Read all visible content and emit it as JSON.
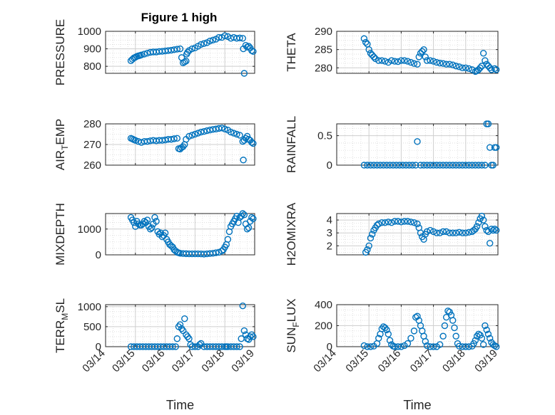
{
  "figure": {
    "title": "Figure 1 high"
  },
  "colors": {
    "marker": "#0072BD",
    "grid": "#d9d9d9",
    "axis": "#262626"
  },
  "chart_data": [
    {
      "type": "scatter",
      "ylabel": "PRESSURE",
      "xlabel": "",
      "xlim": [
        0,
        5
      ],
      "ylim": [
        760,
        1000
      ],
      "yticks": [
        800,
        900,
        1000
      ],
      "ytick_labels": [
        "800",
        "900",
        "1000"
      ],
      "xtick_labels": [],
      "grid": true,
      "x": [
        0.85,
        0.9,
        0.95,
        1.0,
        1.05,
        1.1,
        1.15,
        1.2,
        1.3,
        1.4,
        1.5,
        1.6,
        1.7,
        1.8,
        1.9,
        2.0,
        2.1,
        2.2,
        2.3,
        2.4,
        2.5,
        2.55,
        2.6,
        2.65,
        2.7,
        2.72,
        2.75,
        2.8,
        2.9,
        3.0,
        3.1,
        3.2,
        3.3,
        3.4,
        3.5,
        3.6,
        3.7,
        3.8,
        3.9,
        4.0,
        4.1,
        4.2,
        4.3,
        4.4,
        4.5,
        4.6,
        4.62,
        4.65,
        4.7,
        4.75,
        4.8,
        4.85,
        4.9,
        4.95
      ],
      "y": [
        832,
        840,
        848,
        852,
        857,
        860,
        862,
        865,
        870,
        875,
        880,
        882,
        882,
        885,
        886,
        888,
        890,
        892,
        895,
        898,
        900,
        850,
        820,
        825,
        830,
        870,
        880,
        890,
        900,
        905,
        915,
        925,
        930,
        935,
        945,
        950,
        955,
        965,
        965,
        975,
        970,
        960,
        965,
        960,
        962,
        960,
        900,
        760,
        920,
        910,
        915,
        905,
        890,
        885
      ]
    },
    {
      "type": "scatter",
      "ylabel": "THETA",
      "xlabel": "",
      "xlim": [
        0,
        5
      ],
      "ylim": [
        278.5,
        290
      ],
      "yticks": [
        280,
        285,
        290
      ],
      "ytick_labels": [
        "280",
        "285",
        "290"
      ],
      "xtick_labels": [],
      "grid": true,
      "x": [
        0.85,
        0.9,
        0.95,
        1.0,
        1.05,
        1.1,
        1.15,
        1.2,
        1.3,
        1.4,
        1.5,
        1.6,
        1.7,
        1.8,
        1.9,
        2.0,
        2.1,
        2.2,
        2.3,
        2.4,
        2.5,
        2.55,
        2.6,
        2.65,
        2.7,
        2.75,
        2.8,
        2.9,
        3.0,
        3.1,
        3.2,
        3.3,
        3.4,
        3.5,
        3.6,
        3.7,
        3.8,
        3.9,
        4.0,
        4.1,
        4.2,
        4.3,
        4.35,
        4.4,
        4.45,
        4.5,
        4.55,
        4.6,
        4.65,
        4.7,
        4.75,
        4.8,
        4.9,
        4.95
      ],
      "y": [
        288,
        287,
        286.5,
        285,
        284,
        283.5,
        283,
        282.5,
        282,
        282,
        281.8,
        281.5,
        282,
        281.8,
        281.7,
        282,
        282,
        281.8,
        281.5,
        281.2,
        281,
        283,
        284,
        284.5,
        285,
        283,
        282,
        282,
        281.8,
        281.5,
        281.3,
        281.2,
        281,
        281,
        280.8,
        280.5,
        280.3,
        280,
        280,
        279.8,
        279.5,
        279,
        279.2,
        279.5,
        280,
        280.5,
        284,
        282,
        281,
        280.5,
        280,
        279.5,
        279.8,
        279.5
      ]
    },
    {
      "type": "scatter",
      "ylabel": "AIR_T_EMP",
      "xlabel": "",
      "xlim": [
        0,
        5
      ],
      "ylim": [
        260,
        280
      ],
      "yticks": [
        260,
        270,
        280
      ],
      "ytick_labels": [
        "260",
        "270",
        "280"
      ],
      "xtick_labels": [],
      "grid": true,
      "x": [
        0.85,
        0.9,
        0.95,
        1.0,
        1.1,
        1.2,
        1.3,
        1.4,
        1.5,
        1.6,
        1.7,
        1.8,
        1.9,
        2.0,
        2.1,
        2.2,
        2.3,
        2.4,
        2.45,
        2.5,
        2.55,
        2.6,
        2.65,
        2.7,
        2.8,
        2.9,
        3.0,
        3.1,
        3.2,
        3.3,
        3.4,
        3.5,
        3.6,
        3.7,
        3.8,
        3.9,
        4.0,
        4.1,
        4.2,
        4.3,
        4.4,
        4.5,
        4.6,
        4.62,
        4.65,
        4.7,
        4.75,
        4.8,
        4.85,
        4.9,
        4.95
      ],
      "y": [
        273,
        272.7,
        272.3,
        272,
        271.5,
        271,
        271.5,
        271.5,
        271.8,
        272,
        271.8,
        272,
        272,
        272.2,
        272.5,
        272.5,
        272.8,
        273,
        268,
        267.8,
        268.5,
        269,
        270,
        272.5,
        274,
        274.5,
        275,
        275.5,
        276,
        276.3,
        276.7,
        277,
        277.3,
        277.5,
        277.8,
        278,
        277.5,
        277,
        276,
        275.5,
        275,
        274.5,
        271.5,
        262.5,
        272,
        273,
        274,
        272.5,
        272,
        271,
        270.5
      ]
    },
    {
      "type": "scatter",
      "ylabel": "RAINFALL",
      "xlabel": "",
      "xlim": [
        0,
        5
      ],
      "ylim": [
        0,
        0.7
      ],
      "yticks": [
        0,
        0.5
      ],
      "ytick_labels": [
        "0",
        "0.5"
      ],
      "xtick_labels": [],
      "grid": true,
      "x": [
        0.85,
        0.95,
        1.05,
        1.15,
        1.25,
        1.35,
        1.45,
        1.55,
        1.65,
        1.75,
        1.85,
        1.95,
        2.05,
        2.15,
        2.25,
        2.35,
        2.45,
        2.5,
        2.6,
        2.7,
        2.8,
        2.9,
        3.0,
        3.1,
        3.2,
        3.3,
        3.4,
        3.5,
        3.6,
        3.7,
        3.8,
        3.9,
        4.0,
        4.1,
        4.2,
        4.3,
        4.4,
        4.5,
        4.6,
        4.65,
        4.7,
        4.75,
        4.8,
        4.85,
        4.9,
        4.95
      ],
      "y": [
        0,
        0,
        0,
        0,
        0,
        0,
        0,
        0,
        0,
        0,
        0,
        0,
        0,
        0,
        0,
        0,
        0,
        0.4,
        0,
        0,
        0,
        0,
        0,
        0,
        0,
        0,
        0,
        0,
        0,
        0,
        0,
        0,
        0,
        0,
        0,
        0,
        0,
        0,
        0,
        0.7,
        0.7,
        0.3,
        0,
        0,
        0.3,
        0.3
      ]
    },
    {
      "type": "scatter",
      "ylabel": "MIXDEPTH",
      "xlabel": "",
      "xlim": [
        0,
        5
      ],
      "ylim": [
        0,
        1600
      ],
      "yticks": [
        0,
        1000
      ],
      "ytick_labels": [
        "0",
        "1000"
      ],
      "xtick_labels": [],
      "grid": true,
      "x": [
        0.85,
        0.9,
        0.95,
        1.0,
        1.05,
        1.1,
        1.15,
        1.2,
        1.25,
        1.3,
        1.35,
        1.4,
        1.45,
        1.5,
        1.55,
        1.6,
        1.65,
        1.7,
        1.75,
        1.8,
        1.85,
        1.9,
        1.95,
        2.0,
        2.05,
        2.1,
        2.15,
        2.2,
        2.25,
        2.3,
        2.35,
        2.4,
        2.45,
        2.5,
        2.6,
        2.7,
        2.8,
        2.9,
        3.0,
        3.1,
        3.2,
        3.3,
        3.4,
        3.5,
        3.6,
        3.7,
        3.8,
        3.9,
        3.95,
        4.0,
        4.05,
        4.1,
        4.15,
        4.2,
        4.25,
        4.3,
        4.35,
        4.4,
        4.45,
        4.5,
        4.55,
        4.6,
        4.65,
        4.7,
        4.75,
        4.8,
        4.85,
        4.9,
        4.95
      ],
      "y": [
        1450,
        1350,
        1250,
        1100,
        1300,
        1200,
        1150,
        1150,
        1200,
        1300,
        1250,
        1350,
        1100,
        1000,
        1050,
        1200,
        1450,
        1300,
        900,
        800,
        850,
        700,
        750,
        850,
        600,
        500,
        400,
        350,
        300,
        200,
        150,
        100,
        80,
        60,
        50,
        45,
        40,
        40,
        40,
        40,
        35,
        30,
        40,
        50,
        60,
        80,
        100,
        150,
        200,
        300,
        400,
        600,
        900,
        1100,
        1200,
        1300,
        1400,
        1500,
        1250,
        1450,
        1500,
        1600,
        1550,
        1200,
        1000,
        1050,
        1300,
        1450,
        1400
      ]
    },
    {
      "type": "scatter",
      "ylabel": "H2OMIXRA",
      "xlabel": "",
      "xlim": [
        0,
        5
      ],
      "ylim": [
        1.3,
        4.5
      ],
      "yticks": [
        2,
        3,
        4
      ],
      "ytick_labels": [
        "2",
        "3",
        "4"
      ],
      "xtick_labels": [],
      "grid": true,
      "x": [
        0.9,
        0.95,
        1.0,
        1.05,
        1.1,
        1.15,
        1.2,
        1.25,
        1.3,
        1.4,
        1.5,
        1.6,
        1.7,
        1.8,
        1.9,
        2.0,
        2.1,
        2.2,
        2.3,
        2.4,
        2.5,
        2.55,
        2.6,
        2.65,
        2.7,
        2.75,
        2.8,
        2.9,
        3.0,
        3.1,
        3.2,
        3.3,
        3.4,
        3.5,
        3.6,
        3.7,
        3.8,
        3.9,
        4.0,
        4.1,
        4.2,
        4.25,
        4.3,
        4.35,
        4.4,
        4.45,
        4.5,
        4.55,
        4.6,
        4.65,
        4.7,
        4.75,
        4.8,
        4.85,
        4.9,
        4.95
      ],
      "y": [
        1.5,
        1.7,
        2.0,
        2.6,
        2.9,
        3.2,
        3.4,
        3.6,
        3.7,
        3.8,
        3.8,
        3.85,
        3.8,
        3.9,
        3.9,
        3.85,
        3.9,
        3.9,
        3.85,
        3.8,
        3.7,
        3.4,
        3.0,
        2.7,
        2.5,
        2.9,
        3.1,
        3.2,
        3.1,
        3.0,
        3.0,
        3.1,
        3.1,
        3.0,
        3.0,
        3.0,
        3.05,
        3.0,
        3.0,
        3.05,
        3.1,
        3.2,
        3.3,
        3.5,
        3.8,
        4.1,
        4.3,
        4.0,
        3.5,
        3.2,
        3.1,
        2.2,
        3.3,
        3.2,
        3.3,
        3.2
      ]
    },
    {
      "type": "scatter",
      "ylabel": "TERR_M_SL",
      "xlabel": "Time",
      "xlim": [
        0,
        5
      ],
      "ylim": [
        0,
        1050
      ],
      "yticks": [
        0,
        500,
        1000
      ],
      "ytick_labels": [
        "0",
        "500",
        "1000"
      ],
      "xtick_labels": [
        "03/14",
        "03/15",
        "03/16",
        "03/17",
        "03/18",
        "03/19"
      ],
      "grid": true,
      "x": [
        0.85,
        0.95,
        1.05,
        1.15,
        1.25,
        1.35,
        1.45,
        1.55,
        1.65,
        1.75,
        1.85,
        1.95,
        2.05,
        2.15,
        2.25,
        2.35,
        2.4,
        2.45,
        2.5,
        2.55,
        2.6,
        2.65,
        2.7,
        2.75,
        2.8,
        2.85,
        2.9,
        3.0,
        3.1,
        3.15,
        3.2,
        3.3,
        3.4,
        3.5,
        3.6,
        3.7,
        3.8,
        3.9,
        4.0,
        4.05,
        4.1,
        4.2,
        4.3,
        4.4,
        4.5,
        4.55,
        4.6,
        4.65,
        4.7,
        4.75,
        4.8,
        4.85,
        4.9,
        4.95
      ],
      "y": [
        0,
        0,
        0,
        0,
        0,
        0,
        0,
        0,
        0,
        0,
        0,
        0,
        0,
        0,
        0,
        0,
        200,
        500,
        550,
        450,
        400,
        700,
        300,
        250,
        200,
        50,
        0,
        0,
        0,
        50,
        80,
        0,
        0,
        0,
        0,
        0,
        0,
        0,
        0,
        0,
        0,
        0,
        0,
        0,
        0,
        200,
        1020,
        400,
        300,
        200,
        180,
        250,
        300,
        250
      ]
    },
    {
      "type": "scatter",
      "ylabel": "SUN_F_LUX",
      "xlabel": "Time",
      "xlim": [
        0,
        5
      ],
      "ylim": [
        0,
        400
      ],
      "yticks": [
        0,
        200,
        400
      ],
      "ytick_labels": [
        "0",
        "200",
        "400"
      ],
      "xtick_labels": [
        "03/14",
        "03/15",
        "03/16",
        "03/17",
        "03/18",
        "03/19"
      ],
      "grid": true,
      "x": [
        0.85,
        0.95,
        1.05,
        1.15,
        1.25,
        1.3,
        1.35,
        1.4,
        1.45,
        1.5,
        1.55,
        1.6,
        1.65,
        1.7,
        1.75,
        1.8,
        1.9,
        2.0,
        2.1,
        2.2,
        2.3,
        2.4,
        2.45,
        2.5,
        2.55,
        2.6,
        2.65,
        2.7,
        2.75,
        2.8,
        2.9,
        3.0,
        3.1,
        3.2,
        3.3,
        3.35,
        3.4,
        3.45,
        3.5,
        3.55,
        3.6,
        3.65,
        3.7,
        3.75,
        3.8,
        3.9,
        4.0,
        4.1,
        4.2,
        4.25,
        4.3,
        4.35,
        4.4,
        4.45,
        4.5,
        4.55,
        4.6,
        4.65,
        4.7,
        4.75,
        4.8,
        4.85,
        4.9,
        4.95
      ],
      "y": [
        10,
        0,
        0,
        5,
        30,
        80,
        120,
        170,
        190,
        180,
        160,
        120,
        60,
        20,
        5,
        0,
        0,
        0,
        10,
        30,
        80,
        150,
        280,
        290,
        250,
        200,
        150,
        100,
        50,
        10,
        0,
        0,
        0,
        20,
        100,
        200,
        280,
        340,
        330,
        300,
        250,
        180,
        100,
        30,
        5,
        0,
        0,
        0,
        5,
        30,
        60,
        100,
        120,
        110,
        80,
        20,
        200,
        160,
        120,
        80,
        40,
        20,
        10,
        0
      ]
    }
  ]
}
